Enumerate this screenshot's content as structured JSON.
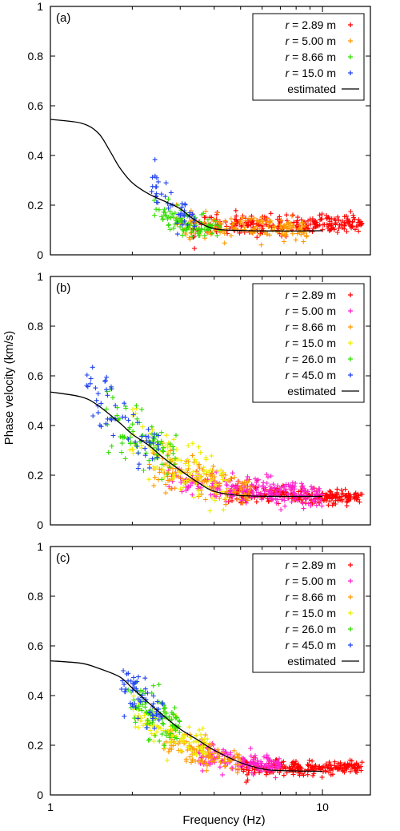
{
  "chart_data": [
    {
      "type": "scatter",
      "panel_label": "(a)",
      "xscale": "log",
      "xlim": [
        1,
        15
      ],
      "ylim": [
        0,
        1
      ],
      "yticks": [
        "0",
        "0.2",
        "0.4",
        "0.6",
        "0.8",
        "1"
      ],
      "xticks": [],
      "xlabel": "",
      "ylabel": "",
      "legend_position": "top-right",
      "series": [
        {
          "name": "2.89 m",
          "color": "#ff0000",
          "fmin": 3.3,
          "fmax": 14.0,
          "v_at_fmin": 0.11,
          "v_at_fmax": 0.13,
          "spread": 0.025,
          "count": 260
        },
        {
          "name": "5.00 m",
          "color": "#ff9900",
          "fmin": 2.9,
          "fmax": 9.0,
          "v_at_fmin": 0.12,
          "v_at_fmax": 0.1,
          "spread": 0.03,
          "count": 160
        },
        {
          "name": "8.66 m",
          "color": "#33dd00",
          "fmin": 2.4,
          "fmax": 4.2,
          "v_at_fmin": 0.18,
          "v_at_fmax": 0.1,
          "spread": 0.035,
          "count": 90
        },
        {
          "name": "15.0 m",
          "color": "#2244ee",
          "fmin": 2.3,
          "fmax": 3.4,
          "v_at_fmin": 0.3,
          "v_at_fmax": 0.14,
          "spread": 0.045,
          "count": 45
        }
      ],
      "estimated": {
        "name": "estimated",
        "x": [
          1.0,
          1.3,
          1.5,
          1.65,
          1.8,
          2.0,
          2.3,
          2.7,
          3.0,
          3.4,
          4.0,
          5.0,
          7.0,
          10.0
        ],
        "y": [
          0.545,
          0.53,
          0.49,
          0.42,
          0.35,
          0.29,
          0.245,
          0.21,
          0.185,
          0.14,
          0.105,
          0.098,
          0.096,
          0.097
        ]
      }
    },
    {
      "type": "scatter",
      "panel_label": "(b)",
      "xscale": "log",
      "xlim": [
        1,
        15
      ],
      "ylim": [
        0,
        1
      ],
      "yticks": [
        "0",
        "0.2",
        "0.4",
        "0.6",
        "0.8",
        "1"
      ],
      "xticks": [],
      "xlabel": "",
      "ylabel": "Phase velocity (km/s)",
      "legend_position": "top-right",
      "series": [
        {
          "name": "2.89 m",
          "color": "#ff0000",
          "fmin": 4.5,
          "fmax": 14.0,
          "v_at_fmin": 0.13,
          "v_at_fmax": 0.11,
          "spread": 0.02,
          "count": 240
        },
        {
          "name": "5.00 m",
          "color": "#ff22cc",
          "fmin": 2.7,
          "fmax": 10.0,
          "v_at_fmin": 0.19,
          "v_at_fmax": 0.12,
          "spread": 0.035,
          "count": 240
        },
        {
          "name": "8.66 m",
          "color": "#ff9900",
          "fmin": 2.3,
          "fmax": 5.5,
          "v_at_fmin": 0.27,
          "v_at_fmax": 0.13,
          "spread": 0.05,
          "count": 130
        },
        {
          "name": "15.0 m",
          "color": "#eeee00",
          "fmin": 1.9,
          "fmax": 4.5,
          "v_at_fmin": 0.42,
          "v_at_fmax": 0.15,
          "spread": 0.07,
          "count": 110
        },
        {
          "name": "26.0 m",
          "color": "#33dd00",
          "fmin": 1.6,
          "fmax": 2.9,
          "v_at_fmin": 0.48,
          "v_at_fmax": 0.27,
          "spread": 0.07,
          "count": 80
        },
        {
          "name": "45.0 m",
          "color": "#2244ee",
          "fmin": 1.35,
          "fmax": 2.5,
          "v_at_fmin": 0.62,
          "v_at_fmax": 0.3,
          "spread": 0.07,
          "count": 60
        }
      ],
      "estimated": {
        "name": "estimated",
        "x": [
          1.0,
          1.3,
          1.5,
          1.8,
          2.0,
          2.3,
          2.6,
          3.0,
          3.5,
          4.0,
          5.0,
          7.0,
          10.0
        ],
        "y": [
          0.535,
          0.515,
          0.48,
          0.41,
          0.365,
          0.32,
          0.27,
          0.22,
          0.17,
          0.135,
          0.118,
          0.115,
          0.115
        ]
      }
    },
    {
      "type": "scatter",
      "panel_label": "(c)",
      "xscale": "log",
      "xlim": [
        1,
        15
      ],
      "ylim": [
        0,
        1
      ],
      "yticks": [
        "0",
        "0.2",
        "0.4",
        "0.6",
        "0.8",
        "1"
      ],
      "xticks": [
        "1",
        "10"
      ],
      "xlabel": "Frequency (Hz)",
      "ylabel": "",
      "legend_position": "top-right",
      "series": [
        {
          "name": "2.89 m",
          "color": "#ff0000",
          "fmin": 5.0,
          "fmax": 14.0,
          "v_at_fmin": 0.11,
          "v_at_fmax": 0.11,
          "spread": 0.018,
          "count": 230
        },
        {
          "name": "5.00 m",
          "color": "#ff22cc",
          "fmin": 3.5,
          "fmax": 7.0,
          "v_at_fmin": 0.18,
          "v_at_fmax": 0.11,
          "spread": 0.03,
          "count": 160
        },
        {
          "name": "8.66 m",
          "color": "#ff9900",
          "fmin": 2.6,
          "fmax": 5.0,
          "v_at_fmin": 0.24,
          "v_at_fmax": 0.13,
          "spread": 0.04,
          "count": 120
        },
        {
          "name": "15.0 m",
          "color": "#eeee00",
          "fmin": 2.0,
          "fmax": 3.8,
          "v_at_fmin": 0.35,
          "v_at_fmax": 0.19,
          "spread": 0.045,
          "count": 100
        },
        {
          "name": "26.0 m",
          "color": "#33dd00",
          "fmin": 1.9,
          "fmax": 3.0,
          "v_at_fmin": 0.42,
          "v_at_fmax": 0.26,
          "spread": 0.06,
          "count": 90
        },
        {
          "name": "45.0 m",
          "color": "#2244ee",
          "fmin": 1.8,
          "fmax": 2.6,
          "v_at_fmin": 0.48,
          "v_at_fmax": 0.33,
          "spread": 0.07,
          "count": 60
        }
      ],
      "estimated": {
        "name": "estimated",
        "x": [
          1.0,
          1.3,
          1.5,
          1.8,
          2.0,
          2.3,
          2.6,
          3.0,
          3.5,
          4.0,
          5.0,
          6.0,
          7.0,
          10.0
        ],
        "y": [
          0.54,
          0.53,
          0.51,
          0.475,
          0.43,
          0.37,
          0.32,
          0.265,
          0.22,
          0.18,
          0.13,
          0.105,
          0.098,
          0.095
        ]
      }
    }
  ]
}
